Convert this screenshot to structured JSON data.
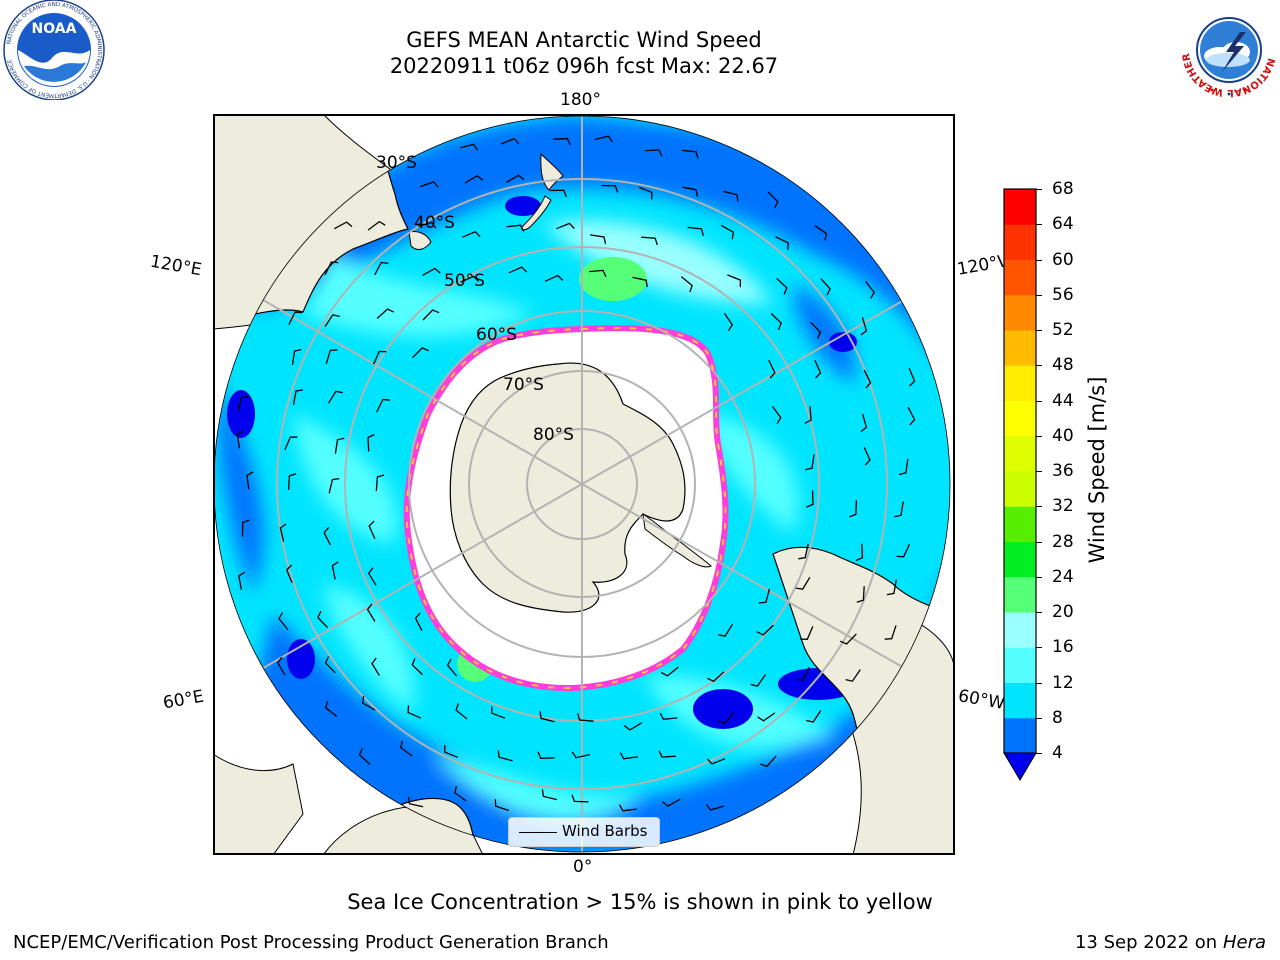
{
  "header": {
    "title_line1": "GEFS MEAN Antarctic Wind Speed",
    "title_line2": "20220911 t06z 096h fcst   Max: 22.67"
  },
  "logos": {
    "noaa_text": "NOAA",
    "noaa_ring": "NATIONAL OCEANIC AND ATMOSPHERIC ADMINISTRATION · U.S. DEPARTMENT OF COMMERCE",
    "nws_ring": "NATIONAL WEATHER SERVICE"
  },
  "map": {
    "projection": "south-polar-stereographic",
    "longitude_labels": {
      "top": "180°",
      "bottom": "0°",
      "upper_left": "120°E",
      "upper_right": "120°W",
      "lower_left": "60°E",
      "lower_right": "60°W"
    },
    "latitude_labels": [
      "30°S",
      "40°S",
      "50°S",
      "60°S",
      "70°S",
      "80°S"
    ],
    "legend_label": "Wind Barbs",
    "colors": {
      "land": "#eeecdc",
      "ice_edge_pink": "#ff3dd8",
      "ice_edge_yellow": "#ffc43d",
      "gridline": "#b3b3b3"
    }
  },
  "colorbar": {
    "label": "Wind Speed [m/s]",
    "ticks": [
      "68",
      "64",
      "60",
      "56",
      "52",
      "48",
      "44",
      "40",
      "36",
      "32",
      "28",
      "24",
      "20",
      "16",
      "12",
      "8",
      "4"
    ],
    "colors_low_to_high": [
      "#0073ff",
      "#00e5ff",
      "#55ffff",
      "#99ffff",
      "#55ff77",
      "#00ee22",
      "#55ee00",
      "#ccff00",
      "#ddff00",
      "#ffff00",
      "#ffee00",
      "#ffbb00",
      "#ff8800",
      "#ff5500",
      "#ff3300",
      "#ff0000"
    ],
    "under_color": "#0000ee"
  },
  "caption": "Sea Ice Concentration > 15% is shown in pink to yellow",
  "footer": {
    "left": "NCEP/EMC/Verification Post Processing Product Generation Branch",
    "right_date": "13 Sep 2022 on",
    "right_host": "Hera"
  }
}
